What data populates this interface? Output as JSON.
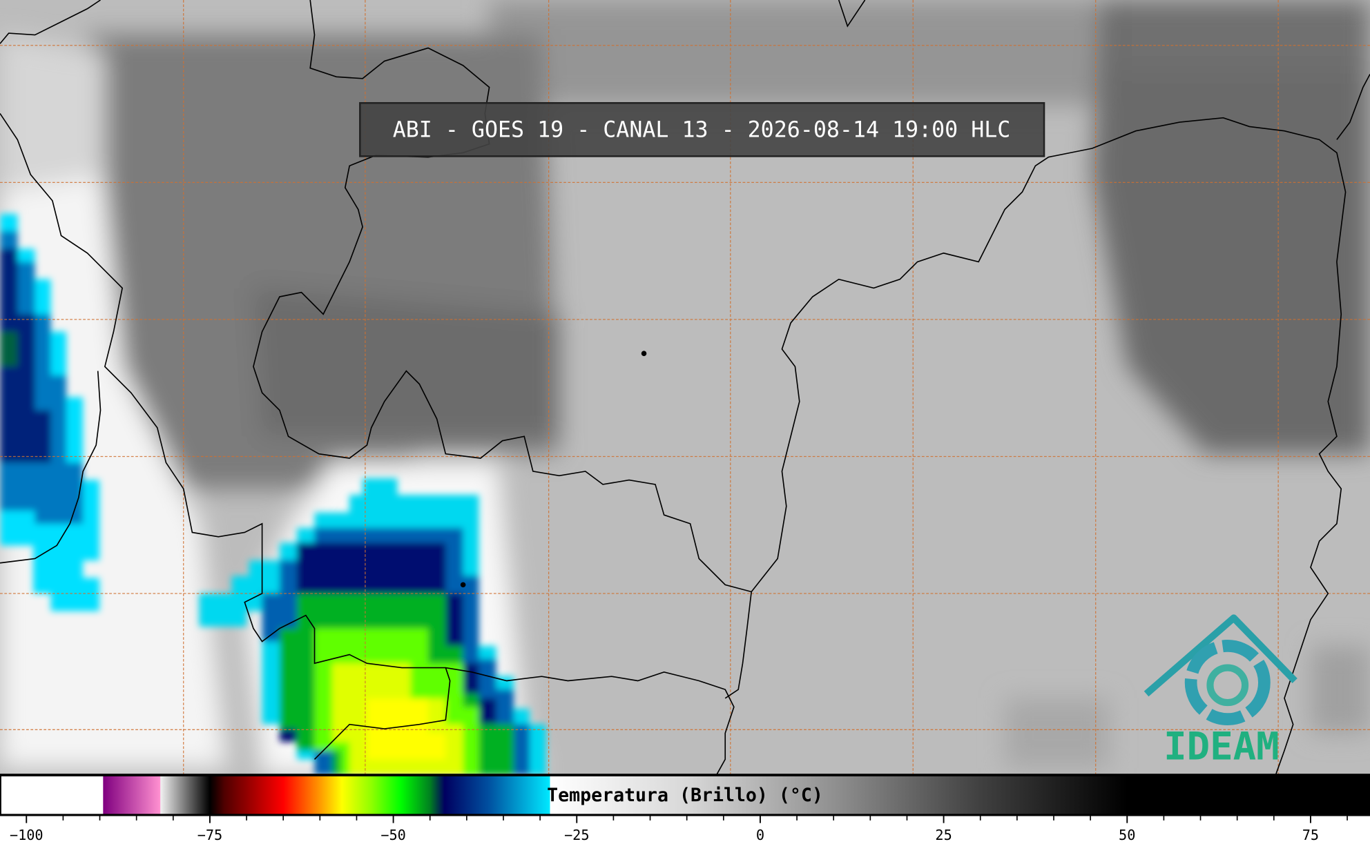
{
  "title": "ABI - GOES 19 - CANAL 13 - 2026-08-14 19:00 HLC",
  "logo": "IDEAM",
  "colorbar": {
    "label": "Temperatura (Brillo) (°C)",
    "range": [
      -103.6,
      83.1
    ],
    "ticks": [
      {
        "value": -100,
        "label": "−100"
      },
      {
        "value": -75,
        "label": "−75"
      },
      {
        "value": -50,
        "label": "−50"
      },
      {
        "value": -25,
        "label": "−25"
      },
      0,
      25,
      50,
      75
    ],
    "minor_ticks": [
      -95,
      -90,
      -85,
      -80,
      -70,
      -65,
      -60,
      -55,
      -45,
      -40,
      -35,
      -30,
      -20,
      -15,
      -10,
      -5,
      5,
      10,
      15,
      20,
      30,
      35,
      40,
      45,
      55,
      60,
      65,
      70,
      80
    ],
    "colormap": [
      [
        -103.6,
        "#ffffff"
      ],
      [
        -89.6,
        "#ffffff"
      ],
      [
        -89.5,
        "#800080"
      ],
      [
        -81.8,
        "#ff90d0"
      ],
      [
        -81.7,
        "#f0f0f0"
      ],
      [
        -75,
        "#000000"
      ],
      [
        -73,
        "#500000"
      ],
      [
        -65,
        "#ff0000"
      ],
      [
        -60,
        "#ff9900"
      ],
      [
        -57,
        "#ffff00"
      ],
      [
        -53,
        "#90ff00"
      ],
      [
        -49,
        "#00ff00"
      ],
      [
        -45,
        "#008020"
      ],
      [
        -43,
        "#000060"
      ],
      [
        -37,
        "#0050a0"
      ],
      [
        -28.7,
        "#00e8ff"
      ],
      [
        -28.6,
        "#ffffff"
      ],
      [
        -10,
        "#d8d8d8"
      ],
      [
        10,
        "#909090"
      ],
      [
        30,
        "#404040"
      ],
      [
        50,
        "#000000"
      ],
      [
        83.1,
        "#000000"
      ]
    ]
  }
}
